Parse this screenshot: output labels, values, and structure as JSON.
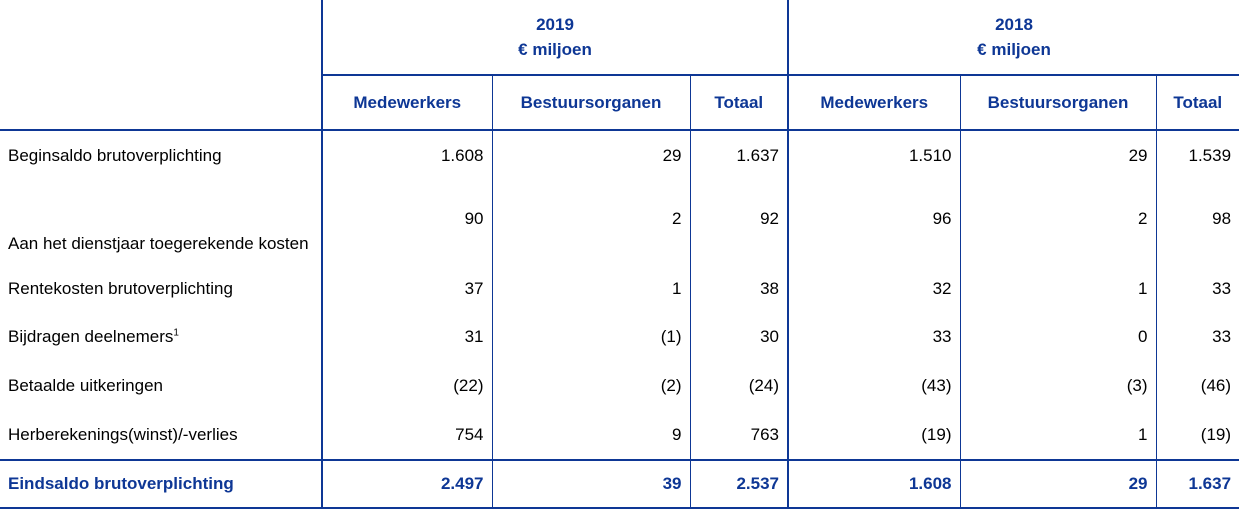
{
  "years": [
    {
      "year": "2019",
      "unit": "€ miljoen"
    },
    {
      "year": "2018",
      "unit": "€ miljoen"
    }
  ],
  "columns": [
    "Medewerkers",
    "Bestuursorganen",
    "Totaal",
    "Medewerkers",
    "Bestuursorganen",
    "Totaal"
  ],
  "rows": [
    {
      "label": "Beginsaldo brutoverplichting",
      "footnote": "",
      "values": [
        "1.608",
        "29",
        "1.637",
        "1.510",
        "29",
        "1.539"
      ]
    },
    {
      "label": "Aan het dienstjaar toegerekende kosten",
      "footnote": "",
      "values": [
        "90",
        "2",
        "92",
        "96",
        "2",
        "98"
      ]
    },
    {
      "label": "Rentekosten brutoverplichting",
      "footnote": "",
      "values": [
        "37",
        "1",
        "38",
        "32",
        "1",
        "33"
      ]
    },
    {
      "label": "Bijdragen deelnemers",
      "footnote": "1",
      "values": [
        "31",
        "(1)",
        "30",
        "33",
        "0",
        "33"
      ]
    },
    {
      "label": "Betaalde uitkeringen",
      "footnote": "",
      "values": [
        "(22)",
        "(2)",
        "(24)",
        "(43)",
        "(3)",
        "(46)"
      ]
    },
    {
      "label": "Herberekenings(winst)/-verlies",
      "footnote": "",
      "values": [
        "754",
        "9",
        "763",
        "(19)",
        "1",
        "(19)"
      ]
    }
  ],
  "total": {
    "label": "Eindsaldo brutoverplichting",
    "values": [
      "2.497",
      "39",
      "2.537",
      "1.608",
      "29",
      "1.637"
    ]
  }
}
